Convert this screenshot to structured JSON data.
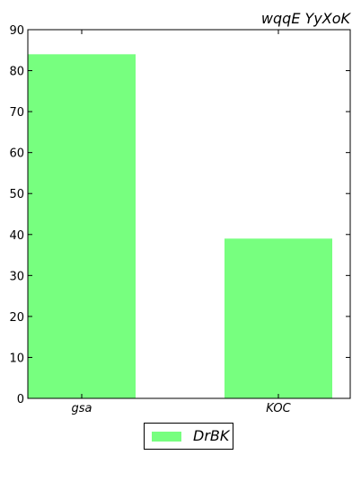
{
  "colors": {
    "bar": "#77ff7f",
    "axis": "#000000",
    "background": "#ffffff"
  },
  "chart_data": {
    "type": "bar",
    "title": "wqqE YyXoK",
    "xlabel": "",
    "ylabel": "",
    "categories": [
      "gsa",
      "KOC"
    ],
    "series": [
      {
        "name": "DrBK",
        "values": [
          84,
          39
        ]
      }
    ],
    "ylim": [
      0,
      90
    ],
    "yticks": [
      0,
      10,
      20,
      30,
      40,
      50,
      60,
      70,
      80,
      90
    ],
    "grid": false,
    "legend": "bottom-center"
  }
}
